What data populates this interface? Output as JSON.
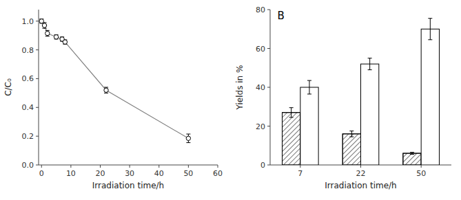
{
  "chart_data": [
    {
      "type": "line",
      "x": [
        0,
        1,
        2,
        5,
        7,
        8,
        22,
        50
      ],
      "values": [
        1.0,
        0.97,
        0.915,
        0.89,
        0.875,
        0.855,
        0.52,
        0.185
      ],
      "errors": [
        0.015,
        0.02,
        0.02,
        0.015,
        0.015,
        0.015,
        0.02,
        0.03
      ],
      "xlabel": "Irradiation time/h",
      "ylabel": "C/C₀",
      "xlim": [
        -1,
        60
      ],
      "ylim": [
        0.0,
        1.08
      ],
      "yticks": [
        {
          "value": 0.0,
          "label": "0.0"
        },
        0.2,
        0.4,
        0.6,
        0.8,
        {
          "value": 1.0,
          "label": "1.0"
        }
      ],
      "xticks": [
        0,
        10,
        20,
        30,
        40,
        50,
        60
      ],
      "color": "gray",
      "marker": "circle",
      "grid": false
    },
    {
      "type": "bar",
      "categories": [
        "7",
        "22",
        "50"
      ],
      "series": [
        {
          "values": [
            27,
            16,
            6
          ],
          "errors": [
            2.5,
            1.5,
            0.5
          ],
          "color": "white"
        },
        {
          "values": [
            40,
            52,
            70
          ],
          "errors": [
            3.5,
            3.0,
            5.5
          ],
          "color": "white"
        }
      ],
      "xlabel": "Irradiation time/h",
      "ylabel": "Yields in %",
      "ylim": [
        0,
        80
      ],
      "yticks": [
        0,
        20,
        40,
        60,
        80
      ],
      "annotation": "B",
      "grid": false
    }
  ]
}
